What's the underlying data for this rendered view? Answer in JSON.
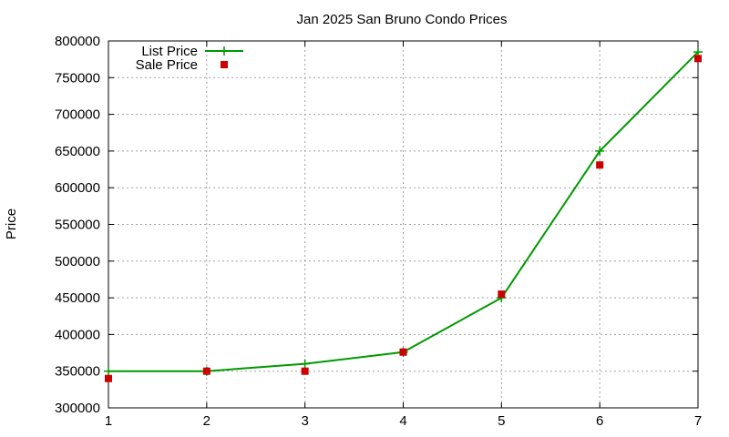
{
  "chart_data": {
    "type": "line",
    "title": "Jan 2025 San Bruno Condo Prices",
    "xlabel": "",
    "ylabel": "Price",
    "xlim": [
      1,
      7
    ],
    "ylim": [
      300000,
      800000
    ],
    "xticks": [
      1,
      2,
      3,
      4,
      5,
      6,
      7
    ],
    "yticks": [
      300000,
      350000,
      400000,
      450000,
      500000,
      550000,
      600000,
      650000,
      700000,
      750000,
      800000
    ],
    "grid": true,
    "legend_position": "top-left",
    "x": [
      1,
      2,
      3,
      4,
      5,
      6,
      7
    ],
    "series": [
      {
        "name": "List Price",
        "style": "line-with-plus-markers",
        "color": "#009900",
        "values": [
          350000,
          350000,
          360000,
          376000,
          450000,
          650000,
          785000
        ]
      },
      {
        "name": "Sale Price",
        "style": "square-markers",
        "color": "#cc0000",
        "values": [
          340000,
          350000,
          350000,
          376000,
          455000,
          631000,
          776000
        ]
      }
    ]
  }
}
